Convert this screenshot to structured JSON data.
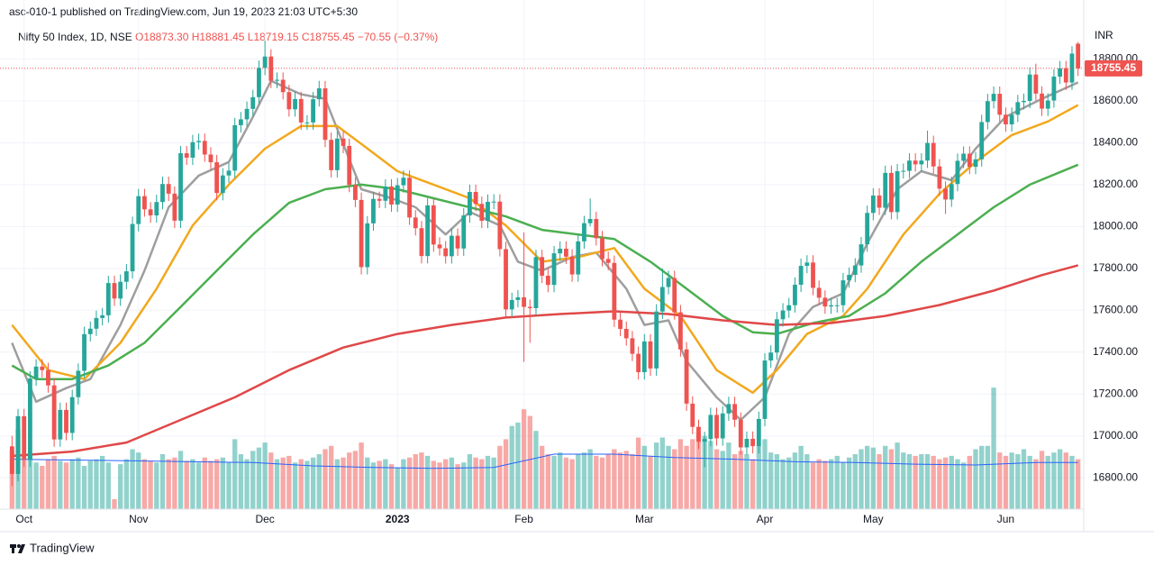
{
  "chart_data": {
    "type": "candlestick",
    "title": "asc-010-1 published on TradingView.com, Jun 19, 2023 21:03 UTC+5:30",
    "symbol": "Nifty 50 Index, 1D, NSE",
    "ohlc_legend": "O18873.30  H18881.45  L18719.15  C18755.45  −70.55 (−0.37%)",
    "currency": "INR",
    "watermark": "TradingView",
    "up_color": "#26a69a",
    "down_color": "#ef5350",
    "volume_up_color": "rgba(38,166,154,0.5)",
    "volume_down_color": "rgba(239,83,80,0.5)",
    "ylim": [
      16650,
      18940
    ],
    "yticks": [
      {
        "value": 16800,
        "label": "16800.00"
      },
      {
        "value": 17000,
        "label": "17000.00"
      },
      {
        "value": 17200,
        "label": "17200.00"
      },
      {
        "value": 17400,
        "label": "17400.00"
      },
      {
        "value": 17600,
        "label": "17600.00"
      },
      {
        "value": 17800,
        "label": "17800.00"
      },
      {
        "value": 18000,
        "label": "18000.00"
      },
      {
        "value": 18200,
        "label": "18200.00"
      },
      {
        "value": 18400,
        "label": "18400.00"
      },
      {
        "value": 18600,
        "label": "18600.00"
      },
      {
        "value": 18800,
        "label": "18800.00"
      }
    ],
    "xticks": [
      {
        "value": 2,
        "label": "Oct"
      },
      {
        "value": 21,
        "label": "Nov"
      },
      {
        "value": 42,
        "label": "Dec"
      },
      {
        "value": 64,
        "label": "2023",
        "bold": true
      },
      {
        "value": 85,
        "label": "Feb"
      },
      {
        "value": 105,
        "label": "Mar"
      },
      {
        "value": 125,
        "label": "Apr"
      },
      {
        "value": 143,
        "label": "May"
      },
      {
        "value": 165,
        "label": "Jun"
      }
    ],
    "grid": true,
    "open": [
      16950,
      16818,
      17094,
      16887,
      17274,
      17331,
      17314,
      17241,
      16983,
      17124,
      17014,
      17185,
      17311,
      17486,
      17512,
      17563,
      17576,
      17730,
      17656,
      17736,
      17786,
      18012,
      18145,
      18082,
      18053,
      18117,
      18203,
      18157,
      18028,
      18350,
      18329,
      18403,
      18409,
      18344,
      18307,
      18160,
      18244,
      18267,
      18484,
      18512,
      18562,
      18618,
      18758,
      18812,
      18696,
      18701,
      18642,
      18560,
      18609,
      18497,
      18497,
      18608,
      18660,
      18414,
      18269,
      18420,
      18385,
      18199,
      18127,
      17806,
      18015,
      18132,
      18123,
      18191,
      18105,
      18197,
      18233,
      18043,
      17992,
      17859,
      18101,
      17914,
      17896,
      17858,
      17956,
      17895,
      18053,
      18165,
      18108,
      18027,
      18118,
      18119,
      17892,
      17604,
      17649,
      17662,
      17616,
      17610,
      17854,
      17765,
      17721,
      17872,
      17894,
      17856,
      17771,
      17929,
      18016,
      18036,
      17944,
      17845,
      17826,
      17555,
      17511,
      17466,
      17392,
      17304,
      17451,
      17322,
      17594,
      17711,
      17754,
      17590,
      17413,
      17154,
      17043,
      16972,
      16985,
      17100,
      16988,
      17107,
      17152,
      17077,
      16945,
      16986,
      16951,
      17081,
      17360,
      17398,
      17557,
      17599,
      17624,
      17722,
      17812,
      17828,
      17707,
      17660,
      17618,
      17624,
      17624,
      17743,
      17769,
      17814,
      17915,
      18065,
      18148,
      18090,
      18256,
      18069,
      18264,
      18266,
      18315,
      18297,
      18315,
      18399,
      18287,
      18181,
      18129,
      18203,
      18314,
      18348,
      18285,
      18321,
      18499,
      18599,
      18634,
      18534,
      18488,
      18534,
      18594,
      18600,
      18726,
      18635,
      18563,
      18602,
      18716,
      18756,
      18688,
      18873.3
    ],
    "high": [
      17000,
      17129,
      17129,
      17309,
      17366,
      17366,
      17349,
      17276,
      17159,
      17159,
      17220,
      17346,
      17521,
      17547,
      17598,
      17611,
      17765,
      17765,
      17771,
      17821,
      18047,
      18180,
      18180,
      18117,
      18152,
      18238,
      18238,
      18192,
      18385,
      18385,
      18438,
      18444,
      18444,
      18379,
      18342,
      18279,
      18302,
      18519,
      18547,
      18597,
      18653,
      18793,
      18888,
      18847,
      18736,
      18736,
      18677,
      18644,
      18644,
      18532,
      18643,
      18696,
      18695,
      18449,
      18455,
      18455,
      18420,
      18234,
      18162,
      18050,
      18167,
      18167,
      18226,
      18226,
      18232,
      18268,
      18268,
      18078,
      18027,
      18136,
      18136,
      17949,
      17931,
      17991,
      17991,
      18088,
      18200,
      18200,
      18143,
      18153,
      18154,
      18154,
      17927,
      17684,
      17697,
      17972,
      17651,
      17889,
      17889,
      17800,
      17907,
      17929,
      17929,
      17891,
      17964,
      18051,
      18134,
      18071,
      17979,
      17880,
      17861,
      17590,
      17546,
      17501,
      17427,
      17486,
      17486,
      17629,
      17800,
      17789,
      17789,
      17625,
      17448,
      17189,
      17078,
      17020,
      17135,
      17135,
      17142,
      17187,
      17187,
      17112,
      17021,
      17021,
      17116,
      17395,
      17433,
      17592,
      17634,
      17659,
      17757,
      17847,
      17863,
      17863,
      17742,
      17695,
      17659,
      17659,
      17778,
      17804,
      17849,
      17950,
      18100,
      18183,
      18183,
      18291,
      18291,
      18299,
      18301,
      18350,
      18350,
      18350,
      18458,
      18434,
      18322,
      18216,
      18238,
      18349,
      18383,
      18383,
      18356,
      18534,
      18634,
      18669,
      18669,
      18569,
      18569,
      18629,
      18635,
      18761,
      18778,
      18670,
      18637,
      18751,
      18791,
      18791,
      18861,
      18881.45
    ],
    "low": [
      16760,
      16783,
      16852,
      16852,
      17239,
      17279,
      17206,
      16948,
      16948,
      16979,
      16979,
      17150,
      17276,
      17451,
      17477,
      17528,
      17541,
      17621,
      17621,
      17701,
      17751,
      17977,
      18047,
      18018,
      18018,
      18082,
      18122,
      17993,
      17993,
      18294,
      18294,
      18368,
      18309,
      18272,
      18125,
      18125,
      18209,
      18232,
      18449,
      18477,
      18527,
      18583,
      18723,
      18661,
      18661,
      18607,
      18525,
      18525,
      18462,
      18462,
      18462,
      18573,
      18379,
      18234,
      18234,
      18350,
      18164,
      18092,
      17771,
      17771,
      17980,
      18088,
      18088,
      18070,
      18070,
      18162,
      18008,
      17957,
      17824,
      17824,
      17879,
      17861,
      17823,
      17823,
      17860,
      17860,
      18018,
      18073,
      17992,
      17992,
      18083,
      17857,
      17569,
      17569,
      17614,
      17353,
      17445,
      17575,
      17730,
      17686,
      17686,
      17837,
      17821,
      17736,
      17736,
      17894,
      18001,
      17909,
      17810,
      17791,
      17520,
      17476,
      17431,
      17357,
      17269,
      17269,
      17287,
      17287,
      17559,
      17676,
      17555,
      17378,
      17119,
      17008,
      16937,
      16850,
      16950,
      16953,
      16953,
      17072,
      17042,
      16910,
      16910,
      16916,
      16916,
      17046,
      17325,
      17363,
      17522,
      17564,
      17589,
      17687,
      17777,
      17672,
      17625,
      17583,
      17583,
      17589,
      17589,
      17708,
      17734,
      17779,
      17880,
      18030,
      18055,
      18055,
      18034,
      18034,
      18229,
      18231,
      18262,
      18262,
      18280,
      18252,
      18146,
      18060,
      18094,
      18168,
      18279,
      18250,
      18250,
      18286,
      18464,
      18564,
      18499,
      18453,
      18453,
      18499,
      18559,
      18565,
      18600,
      18528,
      18528,
      18567,
      18681,
      18653,
      18653,
      18719.15
    ],
    "close": [
      16818,
      17094,
      16887,
      17274,
      17331,
      17314,
      17241,
      16983,
      17124,
      17014,
      17185,
      17311,
      17486,
      17512,
      17563,
      17576,
      17730,
      17656,
      17736,
      17786,
      18012,
      18145,
      18082,
      18053,
      18117,
      18203,
      18157,
      18028,
      18350,
      18329,
      18403,
      18409,
      18344,
      18307,
      18160,
      18244,
      18267,
      18484,
      18512,
      18562,
      18618,
      18758,
      18812,
      18696,
      18701,
      18642,
      18560,
      18609,
      18497,
      18497,
      18608,
      18660,
      18414,
      18269,
      18420,
      18385,
      18199,
      18127,
      17806,
      18015,
      18132,
      18123,
      18191,
      18105,
      18197,
      18233,
      18043,
      17992,
      17859,
      18101,
      17914,
      17896,
      17858,
      17956,
      17895,
      18053,
      18165,
      18108,
      18027,
      18118,
      18119,
      17892,
      17604,
      17649,
      17662,
      17616,
      17610,
      17854,
      17765,
      17721,
      17872,
      17894,
      17856,
      17771,
      17929,
      18016,
      18036,
      17944,
      17845,
      17826,
      17555,
      17511,
      17466,
      17392,
      17304,
      17451,
      17322,
      17594,
      17711,
      17754,
      17590,
      17413,
      17154,
      17043,
      16972,
      16985,
      17100,
      16988,
      17107,
      17152,
      17077,
      16945,
      16986,
      16951,
      17081,
      17360,
      17398,
      17557,
      17599,
      17624,
      17722,
      17812,
      17828,
      17707,
      17660,
      17618,
      17624,
      17624,
      17743,
      17769,
      17814,
      17915,
      18065,
      18148,
      18090,
      18256,
      18069,
      18264,
      18266,
      18315,
      18297,
      18315,
      18399,
      18287,
      18181,
      18129,
      18203,
      18314,
      18348,
      18285,
      18321,
      18499,
      18599,
      18634,
      18534,
      18488,
      18534,
      18594,
      18600,
      18726,
      18635,
      18563,
      18602,
      18716,
      18756,
      18688,
      18826,
      18755.45
    ],
    "vlim": [
      0,
      2880
    ],
    "volume": [
      350,
      480,
      300,
      330,
      280,
      260,
      300,
      320,
      290,
      280,
      300,
      310,
      260,
      290,
      300,
      320,
      280,
      60,
      270,
      300,
      360,
      340,
      300,
      290,
      280,
      330,
      300,
      310,
      350,
      290,
      300,
      280,
      310,
      290,
      300,
      310,
      280,
      420,
      330,
      300,
      350,
      370,
      400,
      340,
      300,
      310,
      320,
      280,
      300,
      290,
      310,
      330,
      360,
      380,
      300,
      310,
      340,
      350,
      400,
      310,
      280,
      290,
      300,
      270,
      250,
      300,
      310,
      330,
      340,
      320,
      290,
      280,
      300,
      310,
      270,
      280,
      330,
      310,
      300,
      320,
      310,
      380,
      420,
      500,
      520,
      600,
      560,
      470,
      380,
      330,
      320,
      340,
      310,
      300,
      330,
      340,
      360,
      320,
      310,
      330,
      360,
      340,
      350,
      330,
      430,
      380,
      320,
      400,
      430,
      380,
      360,
      420,
      380,
      420,
      460,
      440,
      410,
      360,
      350,
      400,
      330,
      350,
      330,
      300,
      380,
      420,
      340,
      330,
      300,
      310,
      340,
      380,
      330,
      280,
      300,
      290,
      300,
      320,
      280,
      310,
      330,
      360,
      380,
      370,
      330,
      380,
      360,
      400,
      340,
      330,
      320,
      330,
      330,
      320,
      300,
      310,
      320,
      300,
      280,
      320,
      360,
      380,
      380,
      730,
      340,
      320,
      340,
      330,
      360,
      320,
      300,
      350,
      320,
      340,
      360,
      340,
      320,
      300
    ],
    "volume_ma": {
      "color": "#2962ff",
      "x": [
        0,
        10,
        20,
        30,
        40,
        50,
        60,
        70,
        80,
        85,
        90,
        100,
        110,
        120,
        130,
        140,
        150,
        160,
        170,
        177
      ],
      "values": [
        300,
        295,
        290,
        285,
        280,
        260,
        250,
        245,
        250,
        290,
        330,
        330,
        310,
        300,
        285,
        280,
        270,
        265,
        280,
        280
      ]
    },
    "lines": [
      {
        "color": "#9e9e9e",
        "x": [
          0,
          4,
          9,
          13,
          18,
          22,
          26,
          31,
          36,
          40,
          43,
          48,
          52,
          55,
          58,
          63,
          67,
          72,
          76,
          81,
          84,
          88,
          93,
          97,
          102,
          105,
          109,
          112,
          117,
          121,
          125,
          129,
          133,
          138,
          142,
          147,
          151,
          156,
          160,
          165,
          171,
          177
        ],
        "values": [
          17444,
          17163,
          17228,
          17271,
          17530,
          17789,
          18092,
          18243,
          18308,
          18524,
          18696,
          18632,
          18610,
          18394,
          18178,
          18135,
          18092,
          17962,
          18070,
          18005,
          17832,
          17789,
          17854,
          17876,
          17703,
          17530,
          17552,
          17357,
          17184,
          17076,
          17184,
          17487,
          17616,
          17681,
          17919,
          18178,
          18264,
          18221,
          18372,
          18524,
          18610,
          18688
        ]
      },
      {
        "color": "#f2a81d",
        "x": [
          0,
          6,
          12,
          18,
          24,
          30,
          36,
          42,
          48,
          54,
          58,
          64,
          70,
          76,
          82,
          88,
          94,
          100,
          105,
          111,
          117,
          123,
          127,
          132,
          138,
          142,
          148,
          154,
          160,
          166,
          172,
          177
        ],
        "values": [
          17530,
          17314,
          17271,
          17444,
          17703,
          18005,
          18200,
          18372,
          18480,
          18480,
          18394,
          18264,
          18200,
          18135,
          18005,
          17832,
          17854,
          17897,
          17703,
          17573,
          17314,
          17206,
          17314,
          17487,
          17573,
          17703,
          17962,
          18156,
          18308,
          18437,
          18502,
          18580
        ]
      },
      {
        "color": "#4caf50",
        "x": [
          0,
          4,
          10,
          16,
          22,
          28,
          34,
          40,
          46,
          52,
          58,
          64,
          70,
          76,
          82,
          88,
          94,
          100,
          106,
          112,
          118,
          123,
          127,
          133,
          139,
          145,
          151,
          157,
          163,
          169,
          177
        ],
        "values": [
          17336,
          17271,
          17271,
          17336,
          17444,
          17616,
          17789,
          17962,
          18113,
          18178,
          18200,
          18178,
          18135,
          18092,
          18048,
          17984,
          17962,
          17940,
          17832,
          17703,
          17573,
          17495,
          17487,
          17539,
          17573,
          17681,
          17832,
          17962,
          18092,
          18200,
          18295
        ]
      },
      {
        "color": "#e04848",
        "x": [
          0,
          10,
          19,
          28,
          37,
          46,
          55,
          64,
          73,
          82,
          91,
          100,
          109,
          118,
          127,
          136,
          145,
          154,
          163,
          171,
          177
        ],
        "values": [
          16904,
          16925,
          16968,
          17076,
          17184,
          17314,
          17422,
          17487,
          17530,
          17565,
          17582,
          17595,
          17582,
          17552,
          17530,
          17539,
          17573,
          17625,
          17694,
          17768,
          17815
        ]
      }
    ]
  }
}
